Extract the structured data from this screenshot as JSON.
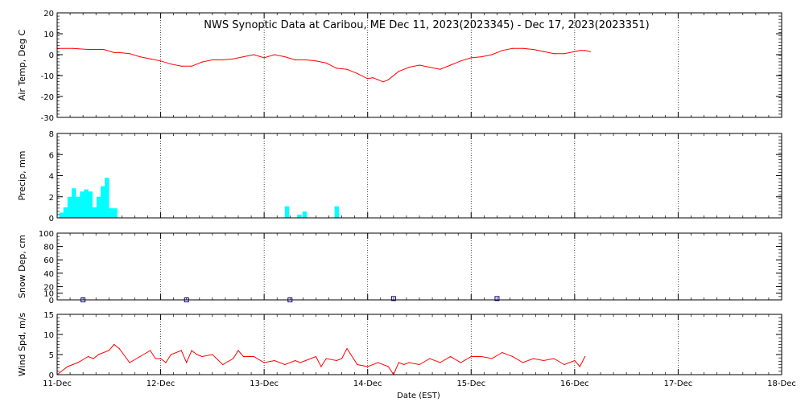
{
  "chart_data": {
    "title": "NWS Synoptic Data at Caribou, ME   Dec 11, 2023(2023345) - Dec 17, 2023(2023351)",
    "xlabel": "Date (EST)",
    "x_ticks": [
      "11-Dec",
      "12-Dec",
      "13-Dec",
      "14-Dec",
      "15-Dec",
      "16-Dec",
      "17-Dec",
      "18-Dec"
    ],
    "x_range_days": [
      0,
      7
    ],
    "grid": "dotted vertical lines at each day",
    "panels": [
      {
        "type": "line",
        "ylabel": "Air Temp, Deg C",
        "ylim": [
          -30,
          20
        ],
        "yticks": [
          -30,
          -20,
          -10,
          0,
          10,
          20
        ],
        "color": "#ff0000",
        "x": [
          0,
          0.15,
          0.3,
          0.45,
          0.55,
          0.6,
          0.7,
          0.8,
          0.9,
          1.0,
          1.1,
          1.2,
          1.3,
          1.4,
          1.5,
          1.6,
          1.7,
          1.8,
          1.9,
          2.0,
          2.1,
          2.2,
          2.3,
          2.4,
          2.5,
          2.6,
          2.7,
          2.8,
          2.9,
          3.0,
          3.05,
          3.1,
          3.15,
          3.2,
          3.3,
          3.4,
          3.5,
          3.6,
          3.7,
          3.8,
          3.9,
          4.0,
          4.1,
          4.2,
          4.3,
          4.4,
          4.5,
          4.6,
          4.7,
          4.8,
          4.9,
          5.0,
          5.05,
          5.1,
          5.15
        ],
        "values": [
          3,
          3,
          2.5,
          2.5,
          1,
          1,
          0.5,
          -1,
          -2,
          -3,
          -4.5,
          -5.5,
          -5.5,
          -3.5,
          -2.5,
          -2.5,
          -2,
          -1,
          0,
          -1.5,
          0,
          -1,
          -2.5,
          -2.5,
          -3,
          -4,
          -6.5,
          -7,
          -9,
          -11.5,
          -11,
          -12,
          -13,
          -12,
          -8,
          -6,
          -5,
          -6,
          -7,
          -5,
          -3,
          -1.5,
          -1,
          0,
          2,
          3,
          3,
          2.5,
          1.5,
          0.5,
          0.5,
          1.5,
          2,
          2,
          1.5
        ]
      },
      {
        "type": "bar",
        "ylabel": "Precip, mm",
        "ylim": [
          0,
          8
        ],
        "yticks": [
          0,
          2,
          4,
          6,
          8
        ],
        "color": "#00ffff",
        "bar_width_days": 0.042,
        "x": [
          0.02,
          0.06,
          0.1,
          0.14,
          0.18,
          0.22,
          0.26,
          0.3,
          0.34,
          0.38,
          0.42,
          0.46,
          0.5,
          0.54,
          0.58,
          2.2,
          2.32,
          2.37,
          2.68
        ],
        "values": [
          0.5,
          1.0,
          2.0,
          2.8,
          2.0,
          2.5,
          2.7,
          2.5,
          1.0,
          2.0,
          3.0,
          3.8,
          0.9,
          0.9,
          0.0,
          1.1,
          0.3,
          0.6,
          1.1
        ]
      },
      {
        "type": "scatter",
        "ylabel": "Snow Dep, cm",
        "ylim": [
          0,
          100
        ],
        "yticks": [
          0,
          10,
          20,
          40,
          60,
          80,
          100
        ],
        "color": "#00008b",
        "marker": "open square",
        "x": [
          0.25,
          1.25,
          2.25,
          3.25,
          4.25
        ],
        "values": [
          0,
          0,
          0,
          2,
          2
        ]
      },
      {
        "type": "line",
        "ylabel": "Wind Spd, m/s",
        "ylim": [
          0,
          15
        ],
        "yticks": [
          0,
          5,
          10,
          15
        ],
        "color": "#ff0000",
        "x": [
          0,
          0.1,
          0.15,
          0.2,
          0.3,
          0.35,
          0.4,
          0.5,
          0.55,
          0.6,
          0.7,
          0.8,
          0.9,
          0.95,
          1.0,
          1.05,
          1.1,
          1.2,
          1.25,
          1.3,
          1.35,
          1.4,
          1.5,
          1.6,
          1.7,
          1.75,
          1.8,
          1.9,
          2.0,
          2.1,
          2.2,
          2.3,
          2.35,
          2.4,
          2.5,
          2.55,
          2.6,
          2.7,
          2.75,
          2.8,
          2.9,
          3.0,
          3.1,
          3.2,
          3.25,
          3.3,
          3.35,
          3.4,
          3.5,
          3.6,
          3.7,
          3.8,
          3.9,
          4.0,
          4.1,
          4.2,
          4.3,
          4.4,
          4.5,
          4.6,
          4.7,
          4.8,
          4.9,
          5.0,
          5.05,
          5.1
        ],
        "values": [
          0,
          2,
          2.5,
          3,
          4.5,
          4,
          5,
          6,
          7.5,
          6.5,
          3,
          4.5,
          6,
          4,
          4,
          3,
          5,
          6,
          3,
          6,
          5,
          4.5,
          5,
          2.5,
          4,
          6,
          4.5,
          4.5,
          3,
          3.5,
          2.5,
          3.5,
          3,
          3.5,
          4.5,
          2,
          4,
          3.5,
          4,
          6.5,
          2.5,
          2,
          3,
          2,
          0,
          3,
          2.5,
          3,
          2.5,
          4,
          3,
          4.5,
          3,
          4.5,
          4.5,
          4,
          5.5,
          4.5,
          3,
          4,
          3.5,
          4,
          2.5,
          3.5,
          2,
          4.5
        ]
      }
    ]
  }
}
